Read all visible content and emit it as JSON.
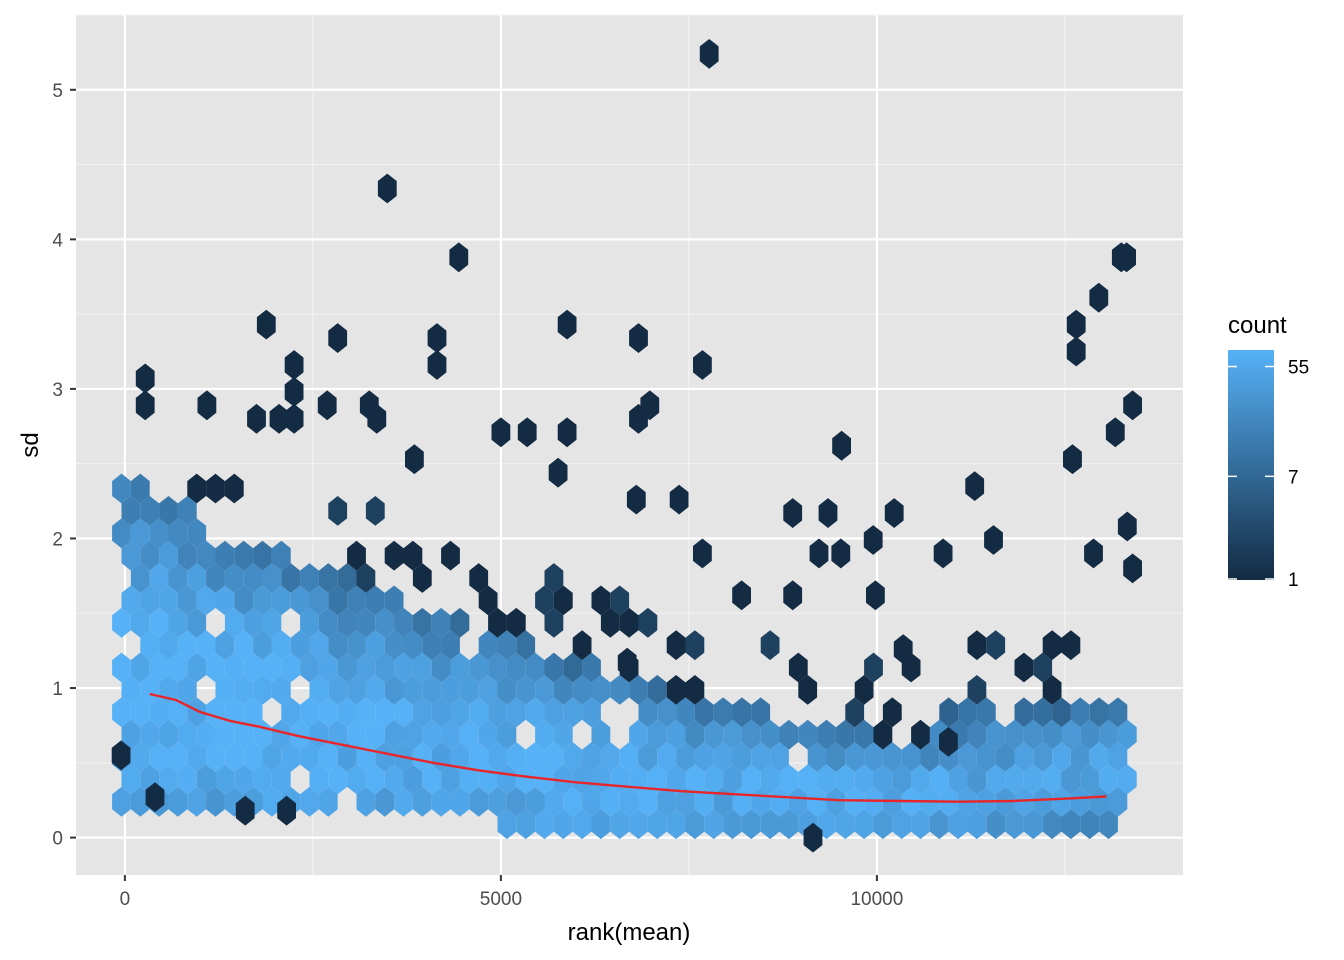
{
  "chart_data": {
    "type": "hexbin",
    "xlabel": "rank(mean)",
    "ylabel": "sd",
    "xlim": [
      -650,
      14070
    ],
    "ylim": [
      -0.25,
      5.5
    ],
    "x_ticks": [
      0,
      5000,
      10000
    ],
    "y_ticks": [
      0,
      1,
      2,
      3,
      4,
      5
    ],
    "grid": true,
    "legend": {
      "title": "count",
      "position": "right",
      "scale": "log",
      "ticks": [
        1,
        7,
        55
      ],
      "range": [
        1,
        75
      ],
      "color_low": "#132B43",
      "color_high": "#56B1F7"
    },
    "trend": {
      "color": "#e8262a",
      "x": [
        330,
        680,
        1000,
        1400,
        1800,
        2300,
        2900,
        3500,
        4100,
        4700,
        5300,
        6000,
        6700,
        7400,
        8100,
        8800,
        9500,
        10300,
        11100,
        11800,
        12500,
        13050
      ],
      "y": [
        0.96,
        0.92,
        0.84,
        0.78,
        0.74,
        0.68,
        0.62,
        0.56,
        0.5,
        0.45,
        0.41,
        0.37,
        0.34,
        0.31,
        0.29,
        0.27,
        0.25,
        0.245,
        0.24,
        0.245,
        0.26,
        0.275
      ]
    },
    "outliers": [
      {
        "x": 7770,
        "y": 5.24
      },
      {
        "x": 3490,
        "y": 4.34
      },
      {
        "x": 4440,
        "y": 3.88
      },
      {
        "x": 13250,
        "y": 3.88
      },
      {
        "x": 13320,
        "y": 3.88
      },
      {
        "x": 12950,
        "y": 3.61
      },
      {
        "x": 1880,
        "y": 3.43
      },
      {
        "x": 5880,
        "y": 3.43
      },
      {
        "x": 12650,
        "y": 3.43
      },
      {
        "x": 2830,
        "y": 3.34
      },
      {
        "x": 4150,
        "y": 3.34
      },
      {
        "x": 6830,
        "y": 3.34
      },
      {
        "x": 12650,
        "y": 3.25
      },
      {
        "x": 2250,
        "y": 3.16
      },
      {
        "x": 4150,
        "y": 3.16
      },
      {
        "x": 7680,
        "y": 3.16
      },
      {
        "x": 270,
        "y": 3.07
      },
      {
        "x": 2250,
        "y": 2.98
      },
      {
        "x": 270,
        "y": 2.89
      },
      {
        "x": 1090,
        "y": 2.89
      },
      {
        "x": 2690,
        "y": 2.89
      },
      {
        "x": 3250,
        "y": 2.89
      },
      {
        "x": 6980,
        "y": 2.89
      },
      {
        "x": 13400,
        "y": 2.89
      },
      {
        "x": 1750,
        "y": 2.8
      },
      {
        "x": 2050,
        "y": 2.8
      },
      {
        "x": 2250,
        "y": 2.8
      },
      {
        "x": 3350,
        "y": 2.8
      },
      {
        "x": 6830,
        "y": 2.8
      },
      {
        "x": 13170,
        "y": 2.71
      },
      {
        "x": 5000,
        "y": 2.71
      },
      {
        "x": 5350,
        "y": 2.71
      },
      {
        "x": 5880,
        "y": 2.71
      },
      {
        "x": 9530,
        "y": 2.62
      },
      {
        "x": 12600,
        "y": 2.53
      },
      {
        "x": 3850,
        "y": 2.53
      },
      {
        "x": 5760,
        "y": 2.44
      },
      {
        "x": 7370,
        "y": 2.26
      },
      {
        "x": 6800,
        "y": 2.26
      },
      {
        "x": 11300,
        "y": 2.35
      },
      {
        "x": 10230,
        "y": 2.17
      },
      {
        "x": 8880,
        "y": 2.17
      },
      {
        "x": 9350,
        "y": 2.17
      },
      {
        "x": 13330,
        "y": 2.08
      },
      {
        "x": 9230,
        "y": 1.9
      },
      {
        "x": 9520,
        "y": 1.9
      },
      {
        "x": 7680,
        "y": 1.9
      },
      {
        "x": 9950,
        "y": 1.99
      },
      {
        "x": 10880,
        "y": 1.9
      },
      {
        "x": 11550,
        "y": 1.99
      },
      {
        "x": 12880,
        "y": 1.9
      },
      {
        "x": 9150,
        "y": 0.0
      },
      {
        "x": 400,
        "y": 0.27
      },
      {
        "x": 1600,
        "y": 0.18
      },
      {
        "x": 2150,
        "y": 0.18
      },
      {
        "x": -50,
        "y": 0.55
      },
      {
        "x": 10950,
        "y": 0.64
      },
      {
        "x": 8880,
        "y": 1.62
      },
      {
        "x": 8200,
        "y": 1.62
      },
      {
        "x": 13400,
        "y": 1.8
      },
      {
        "x": 9980,
        "y": 1.62
      },
      {
        "x": 10350,
        "y": 1.26
      },
      {
        "x": 6680,
        "y": 1.17
      }
    ]
  }
}
